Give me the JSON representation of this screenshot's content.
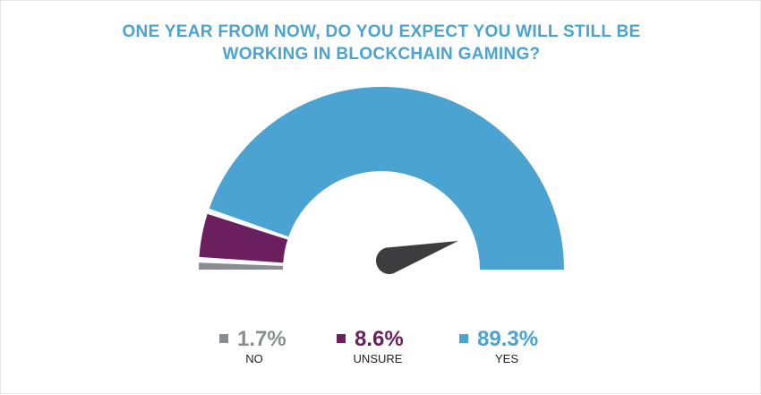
{
  "colors": {
    "title": "#4aa3d0",
    "no": "#8a8d91",
    "unsure": "#6b1f5e",
    "yes": "#4aa3d0",
    "needle": "#3d3d3f"
  },
  "title_lines": [
    "ONE YEAR FROM NOW, DO YOU EXPECT YOU WILL STILL BE",
    "WORKING IN BLOCKCHAIN GAMING?"
  ],
  "chart_data": {
    "type": "pie",
    "style": "semicircle-gauge",
    "title": "ONE YEAR FROM NOW, DO YOU EXPECT YOU WILL STILL BE WORKING IN BLOCKCHAIN GAMING?",
    "categories": [
      "NO",
      "UNSURE",
      "YES"
    ],
    "values": [
      1.7,
      8.6,
      89.3
    ],
    "value_labels": [
      "1.7%",
      "8.6%",
      "89.3%"
    ],
    "colors": [
      "#8a8d91",
      "#6b1f5e",
      "#4aa3d0"
    ],
    "legend_position": "bottom"
  }
}
